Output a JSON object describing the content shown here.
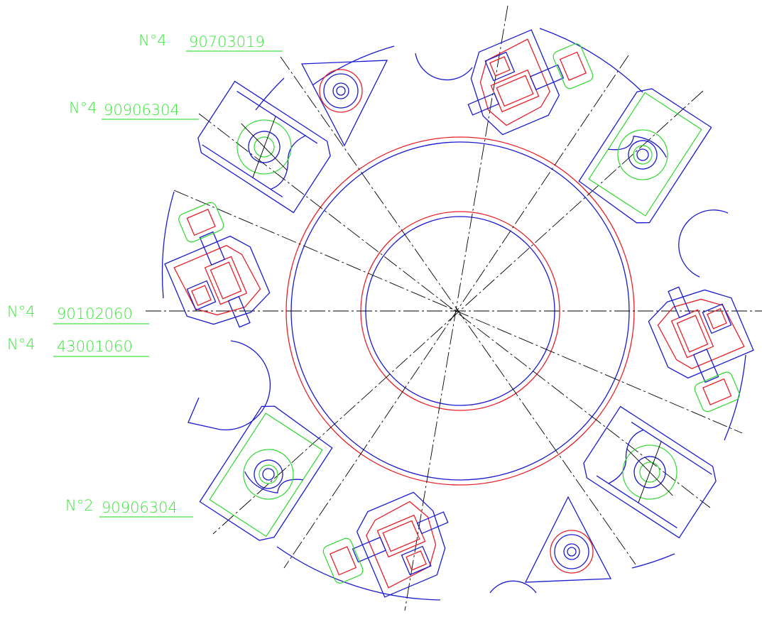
{
  "labels": [
    {
      "qty": "N°4",
      "code": "90703019"
    },
    {
      "qty": "N°4",
      "code": "90906304"
    },
    {
      "qty": "N°4",
      "code": "90102060"
    },
    {
      "qty": "N°4",
      "code": "43001060"
    },
    {
      "qty": "N°2",
      "code": "90906304"
    }
  ]
}
